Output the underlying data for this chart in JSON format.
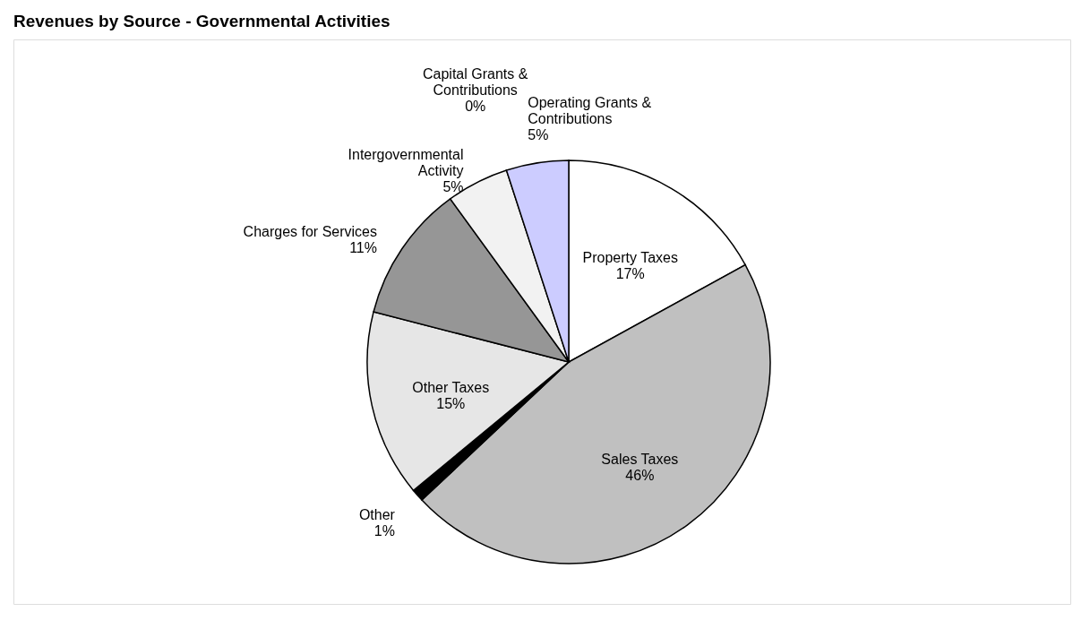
{
  "chart_data": {
    "type": "pie",
    "title": "Revenues by Source - Governmental Activities",
    "categories": [
      "Property Taxes",
      "Sales Taxes",
      "Other",
      "Other Taxes",
      "Charges for Services",
      "Intergovernmental Activity",
      "Capital Grants & Contributions",
      "Operating Grants & Contributions"
    ],
    "values": [
      17,
      46,
      1,
      15,
      11,
      5,
      0,
      5
    ],
    "value_labels": [
      "17%",
      "46%",
      "1%",
      "15%",
      "11%",
      "5%",
      "0%",
      "5%"
    ],
    "colors": [
      "#ffffff",
      "#c0c0c0",
      "#000000",
      "#e6e6e6",
      "#969696",
      "#f2f2f2",
      "#808080",
      "#ccccff"
    ],
    "legend": false
  }
}
